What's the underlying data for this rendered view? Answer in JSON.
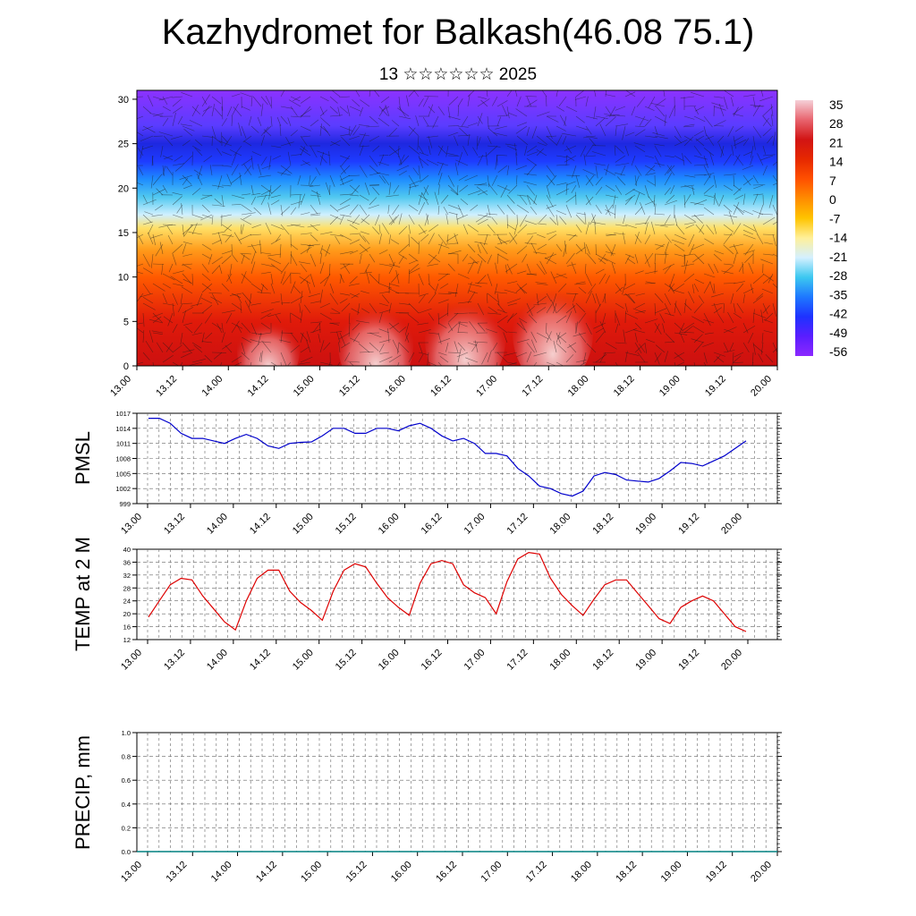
{
  "title": "Kazhydromet for Balkash(46.08 75.1)",
  "subtitle": "13 ☆☆☆☆☆☆ 2025",
  "colors": {
    "pmsl_line": "#0000cc",
    "temp_line": "#dd0000",
    "precip_line": "#008080",
    "grid": "#555555"
  },
  "chart_data": [
    {
      "type": "heatmap",
      "name": "cross-section",
      "x_ticks": [
        "13.00",
        "13.12",
        "14.00",
        "14.12",
        "15.00",
        "15.12",
        "16.00",
        "16.12",
        "17.00",
        "17.12",
        "18.00",
        "18.12",
        "19.00",
        "19.12",
        "20.00"
      ],
      "y_ticks": [
        0,
        5,
        10,
        15,
        20,
        25,
        30
      ],
      "ylim": [
        0,
        31
      ],
      "colorbar_labels": [
        "35",
        "28",
        "21",
        "14",
        "7",
        "0",
        "-7",
        "-14",
        "-21",
        "-28",
        "-35",
        "-42",
        "-49",
        "-56"
      ],
      "colorbar_colors": [
        "#f5d0d8",
        "#e8646e",
        "#d21414",
        "#e62800",
        "#ff5000",
        "#ff8c00",
        "#ffc400",
        "#fff09a",
        "#d4f0ff",
        "#3cc8f0",
        "#1e78ff",
        "#1e32ff",
        "#5a1eff",
        "#8c28ff"
      ],
      "level_colors": [
        {
          "level": 0,
          "color": "#cc1010"
        },
        {
          "level": 5,
          "color": "#e01a0a"
        },
        {
          "level": 10,
          "color": "#ff5a00"
        },
        {
          "level": 13,
          "color": "#ff9a1a"
        },
        {
          "level": 15.5,
          "color": "#ffe066"
        },
        {
          "level": 17,
          "color": "#d0f0ff"
        },
        {
          "level": 19,
          "color": "#50c8f0"
        },
        {
          "level": 21,
          "color": "#1e8cff"
        },
        {
          "level": 23,
          "color": "#1e3cff"
        },
        {
          "level": 25,
          "color": "#1e28e0"
        },
        {
          "level": 27,
          "color": "#5a3cff"
        },
        {
          "level": 31,
          "color": "#8c32ff"
        }
      ]
    },
    {
      "type": "line",
      "ylabel": "PMSL",
      "x_ticks": [
        "13.00",
        "13.12",
        "14.00",
        "14.12",
        "15.00",
        "15.12",
        "16.00",
        "16.12",
        "17.00",
        "17.12",
        "18.00",
        "18.12",
        "19.00",
        "19.12",
        "20.00"
      ],
      "y_ticks": [
        999,
        1002,
        1005,
        1008,
        1011,
        1014,
        1017
      ],
      "ylim": [
        999,
        1017
      ],
      "x": [
        0,
        3,
        6,
        9,
        12,
        15,
        18,
        21,
        24,
        27,
        30,
        33,
        36,
        39,
        42,
        45,
        48,
        51,
        54,
        57,
        60,
        63,
        66,
        69,
        72,
        75,
        78,
        81,
        84,
        87,
        90,
        93,
        96,
        99,
        102,
        105,
        108,
        111,
        114,
        117,
        120,
        123,
        126,
        129,
        132,
        135,
        138,
        141,
        144,
        147,
        150,
        153,
        156,
        159,
        162,
        165
      ],
      "values": [
        1016,
        1016,
        1015,
        1013,
        1012,
        1012,
        1011.5,
        1011,
        1012,
        1012.8,
        1012,
        1010.5,
        1010,
        1011,
        1011.2,
        1011.3,
        1012.5,
        1014,
        1014,
        1013,
        1013,
        1014,
        1014,
        1013.5,
        1014.5,
        1015,
        1014,
        1012.5,
        1011.5,
        1012,
        1011,
        1009,
        1009,
        1008.5,
        1006,
        1004.5,
        1002.5,
        1002,
        1001,
        1000.5,
        1001.5,
        1004.5,
        1005.2,
        1004.8,
        1003.7,
        1003.5,
        1003.3,
        1004,
        1005.5,
        1007.2,
        1007,
        1006.5,
        1007.5,
        1008.5,
        1010,
        1010.5
      ],
      "values_end": 1011.5
    },
    {
      "type": "line",
      "ylabel": "TEMP at 2 M",
      "x_ticks": [
        "13.00",
        "13.12",
        "14.00",
        "14.12",
        "15.00",
        "15.12",
        "16.00",
        "16.12",
        "17.00",
        "17.12",
        "18.00",
        "18.12",
        "19.00",
        "19.12",
        "20.00"
      ],
      "y_ticks": [
        12,
        16,
        20,
        24,
        28,
        32,
        36,
        40
      ],
      "ylim": [
        12,
        40
      ],
      "x": [
        0,
        3,
        6,
        9,
        12,
        15,
        18,
        21,
        24,
        27,
        30,
        33,
        36,
        39,
        42,
        45,
        48,
        51,
        54,
        57,
        60,
        63,
        66,
        69,
        72,
        75,
        78,
        81,
        84,
        87,
        90,
        93,
        96,
        99,
        102,
        105,
        108,
        111,
        114,
        117,
        120,
        123,
        126,
        129,
        132,
        135,
        138,
        141,
        144,
        147,
        150,
        153,
        156,
        159,
        162,
        165
      ],
      "values": [
        19,
        24,
        29,
        31,
        30.5,
        25.5,
        21.5,
        17.5,
        15,
        24,
        31,
        33.5,
        33.5,
        27,
        23.5,
        21,
        18,
        27,
        33.5,
        35.5,
        34.5,
        29.5,
        25,
        22,
        19.5,
        29.5,
        35.5,
        36.5,
        35.5,
        29,
        26.5,
        25,
        20,
        30,
        37,
        39,
        38.5,
        31,
        26,
        22.5,
        19.5,
        24.5,
        29,
        30.5,
        30.5,
        26.5,
        22.5,
        18.5,
        17,
        22,
        24,
        25.5,
        24,
        20,
        16,
        14.5
      ]
    },
    {
      "type": "line",
      "ylabel": "PRECIP, mm",
      "x_ticks": [
        "13.00",
        "13.12",
        "14.00",
        "14.12",
        "15.00",
        "15.12",
        "16.00",
        "16.12",
        "17.00",
        "17.12",
        "18.00",
        "18.12",
        "19.00",
        "19.12",
        "20.00"
      ],
      "y_ticks": [
        "0.0",
        "0.2",
        "0.4",
        "0.6",
        "0.8",
        "1.0"
      ],
      "ylim": [
        0,
        1
      ],
      "values": [
        0,
        0
      ]
    }
  ]
}
